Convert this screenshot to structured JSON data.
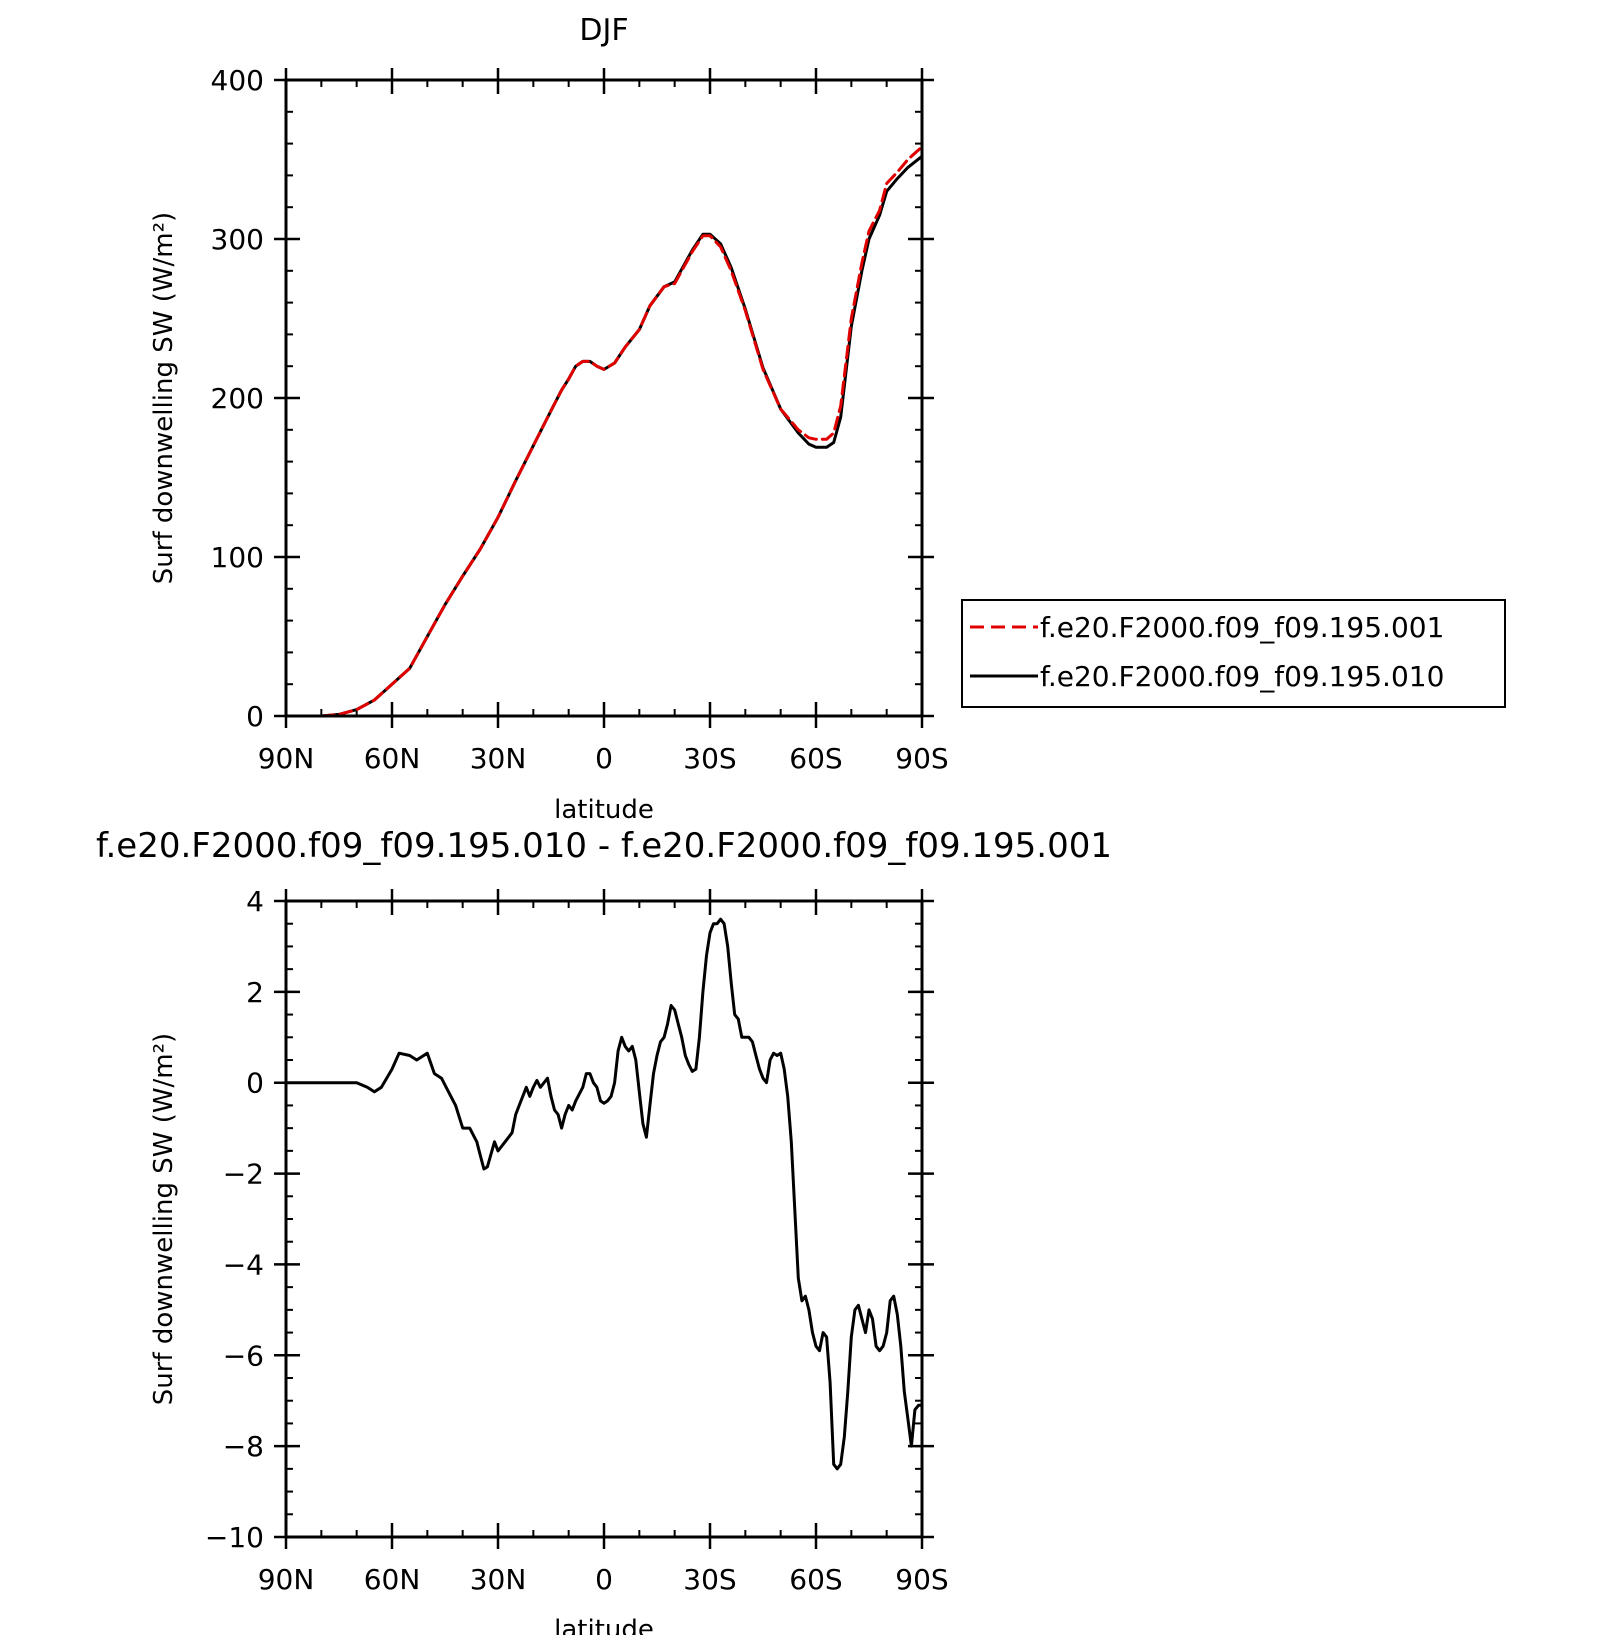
{
  "chart_data": [
    {
      "type": "line",
      "title": "DJF",
      "xlabel": "latitude",
      "ylabel": "Surf downwelling SW (W/m²)",
      "xlim": [
        90,
        -90
      ],
      "ylim": [
        0,
        400
      ],
      "x_ticks": [
        {
          "value": 90,
          "label": "90N"
        },
        {
          "value": 60,
          "label": "60N"
        },
        {
          "value": 30,
          "label": "30N"
        },
        {
          "value": 0,
          "label": "0"
        },
        {
          "value": -30,
          "label": "30S"
        },
        {
          "value": -60,
          "label": "60S"
        },
        {
          "value": -90,
          "label": "90S"
        }
      ],
      "y_ticks": [
        {
          "value": 0,
          "label": "0"
        },
        {
          "value": 100,
          "label": "100"
        },
        {
          "value": 200,
          "label": "200"
        },
        {
          "value": 300,
          "label": "300"
        },
        {
          "value": 400,
          "label": "400"
        }
      ],
      "legend": {
        "placement": "right"
      },
      "x": [
        90,
        80,
        75,
        70,
        65,
        60,
        55,
        50,
        45,
        40,
        35,
        30,
        25,
        20,
        15,
        12,
        10,
        8,
        6,
        4,
        2,
        0,
        -3,
        -6,
        -10,
        -13,
        -17,
        -20,
        -25,
        -28,
        -30,
        -33,
        -36,
        -40,
        -45,
        -50,
        -55,
        -58,
        -60,
        -63,
        -65,
        -67,
        -70,
        -73,
        -75,
        -78,
        -80,
        -83,
        -86,
        -90
      ],
      "series": [
        {
          "name": "f.e20.F2000.f09_f09.195.001",
          "color": "#e00000",
          "dash": "dashed",
          "values": [
            0,
            0,
            1,
            4,
            10,
            20,
            30,
            50,
            70,
            88,
            105,
            125,
            148,
            170,
            192,
            205,
            212,
            220,
            223,
            223,
            220,
            218,
            222,
            232,
            243,
            258,
            270,
            272,
            292,
            302,
            302,
            295,
            280,
            255,
            218,
            193,
            180,
            175,
            174,
            174,
            178,
            195,
            250,
            285,
            305,
            318,
            335,
            342,
            350,
            358
          ]
        },
        {
          "name": "f.e20.F2000.f09_f09.195.010",
          "color": "#000000",
          "dash": "solid",
          "values": [
            0,
            0,
            1,
            4,
            10,
            20,
            30,
            50,
            70,
            88,
            105,
            125,
            148,
            170,
            192,
            205,
            212,
            220,
            223,
            223,
            220,
            218,
            222,
            232,
            243,
            258,
            270,
            273,
            293,
            303,
            303,
            297,
            282,
            256,
            219,
            193,
            178,
            171,
            169,
            169,
            172,
            188,
            245,
            280,
            300,
            315,
            330,
            338,
            345,
            352
          ]
        }
      ]
    },
    {
      "type": "line",
      "title": "f.e20.F2000.f09_f09.195.010 - f.e20.F2000.f09_f09.195.001",
      "xlabel": "latitude",
      "ylabel": "Surf downwelling SW (W/m²)",
      "xlim": [
        90,
        -90
      ],
      "ylim": [
        -10,
        4
      ],
      "x_ticks": [
        {
          "value": 90,
          "label": "90N"
        },
        {
          "value": 60,
          "label": "60N"
        },
        {
          "value": 30,
          "label": "30N"
        },
        {
          "value": 0,
          "label": "0"
        },
        {
          "value": -30,
          "label": "30S"
        },
        {
          "value": -60,
          "label": "60S"
        },
        {
          "value": -90,
          "label": "90S"
        }
      ],
      "y_ticks": [
        {
          "value": -10,
          "label": "−10"
        },
        {
          "value": -8,
          "label": "−8"
        },
        {
          "value": -6,
          "label": "−6"
        },
        {
          "value": -4,
          "label": "−4"
        },
        {
          "value": -2,
          "label": "−2"
        },
        {
          "value": 0,
          "label": "0"
        },
        {
          "value": 2,
          "label": "2"
        },
        {
          "value": 4,
          "label": "4"
        }
      ],
      "series": [
        {
          "color": "#000000",
          "dash": "solid",
          "x": [
            90,
            80,
            70,
            67,
            65,
            63,
            60,
            58,
            55,
            53,
            50,
            48,
            46,
            44,
            42,
            40,
            38,
            36,
            35,
            34,
            33,
            31,
            30,
            28,
            26,
            25,
            24,
            22,
            21,
            20,
            19,
            18,
            16,
            15,
            14,
            13,
            12,
            11,
            10,
            9,
            8,
            6,
            5,
            4,
            3,
            2,
            1,
            0,
            -1,
            -2,
            -3,
            -4,
            -5,
            -6,
            -7,
            -8,
            -9,
            -10,
            -11,
            -12,
            -13,
            -14,
            -15,
            -16,
            -17,
            -18,
            -19,
            -20,
            -21,
            -22,
            -23,
            -24,
            -25,
            -26,
            -27,
            -28,
            -29,
            -30,
            -31,
            -32,
            -33,
            -34,
            -35,
            -36,
            -37,
            -38,
            -39,
            -40,
            -41,
            -42,
            -43,
            -44,
            -45,
            -46,
            -47,
            -48,
            -49,
            -50,
            -51,
            -52,
            -53,
            -54,
            -55,
            -56,
            -57,
            -58,
            -59,
            -60,
            -61,
            -62,
            -63,
            -64,
            -65,
            -66,
            -67,
            -68,
            -69,
            -70,
            -71,
            -72,
            -73,
            -74,
            -75,
            -76,
            -77,
            -78,
            -79,
            -80,
            -81,
            -82,
            -83,
            -84,
            -85,
            -86,
            -87,
            -88,
            -89,
            -90
          ],
          "values": [
            0,
            0,
            0,
            -0.1,
            -0.2,
            -0.1,
            0.3,
            0.65,
            0.6,
            0.5,
            0.65,
            0.2,
            0.1,
            -0.2,
            -0.5,
            -1.0,
            -1.0,
            -1.3,
            -1.6,
            -1.9,
            -1.85,
            -1.3,
            -1.5,
            -1.3,
            -1.1,
            -0.7,
            -0.5,
            -0.1,
            -0.3,
            -0.1,
            0.05,
            -0.1,
            0.1,
            -0.3,
            -0.6,
            -0.7,
            -1.0,
            -0.7,
            -0.5,
            -0.6,
            -0.4,
            -0.1,
            0.2,
            0.2,
            0.0,
            -0.1,
            -0.4,
            -0.45,
            -0.4,
            -0.3,
            0.0,
            0.7,
            1.0,
            0.8,
            0.7,
            0.8,
            0.5,
            -0.2,
            -0.9,
            -1.2,
            -0.5,
            0.2,
            0.6,
            0.9,
            1.0,
            1.3,
            1.7,
            1.6,
            1.3,
            1.0,
            0.6,
            0.4,
            0.25,
            0.3,
            1.0,
            2.0,
            2.8,
            3.3,
            3.5,
            3.5,
            3.6,
            3.5,
            3.0,
            2.2,
            1.5,
            1.4,
            1.0,
            1.0,
            1.0,
            0.9,
            0.6,
            0.3,
            0.1,
            0.0,
            0.5,
            0.65,
            0.6,
            0.65,
            0.3,
            -0.3,
            -1.3,
            -2.8,
            -4.3,
            -4.8,
            -4.7,
            -5.0,
            -5.5,
            -5.8,
            -5.9,
            -5.5,
            -5.6,
            -6.6,
            -8.4,
            -8.5,
            -8.4,
            -7.8,
            -6.8,
            -5.6,
            -5.0,
            -4.9,
            -5.2,
            -5.5,
            -5.0,
            -5.2,
            -5.8,
            -5.9,
            -5.8,
            -5.5,
            -4.8,
            -4.7,
            -5.1,
            -5.8,
            -6.8,
            -7.4,
            -8.0,
            -7.2,
            -7.1,
            -7.1
          ]
        }
      ]
    }
  ]
}
